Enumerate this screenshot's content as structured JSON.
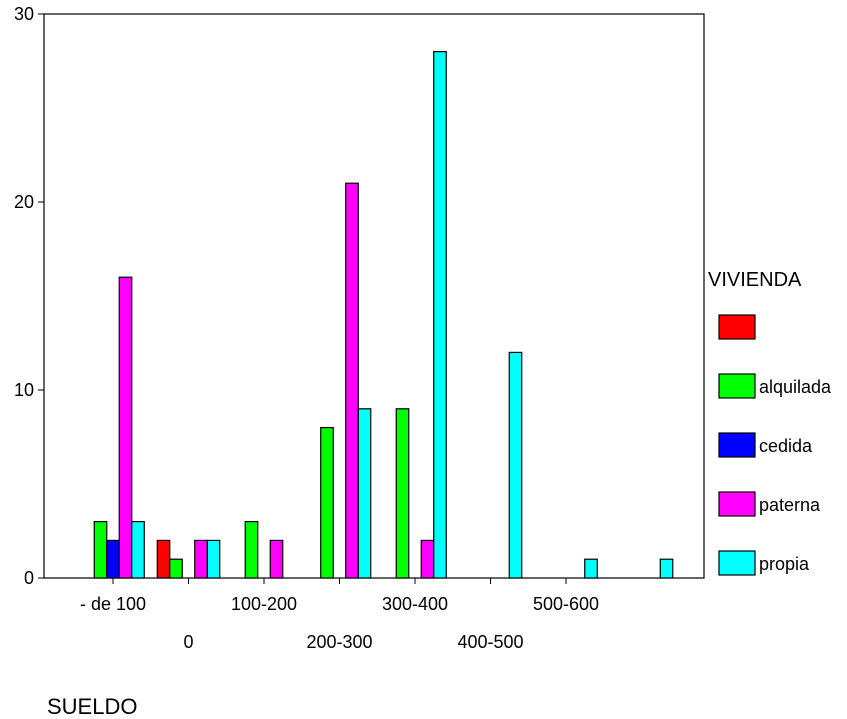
{
  "chart_data": {
    "type": "bar",
    "categories": [
      "- de 100",
      "0",
      "100-200",
      "200-300",
      "300-400",
      "400-500",
      "500-600"
    ],
    "series": [
      {
        "name": "",
        "color": "#ff0000",
        "values": [
          0,
          2,
          0,
          0,
          0,
          0,
          0
        ]
      },
      {
        "name": "alquilada",
        "color": "#00ff00",
        "values": [
          3,
          1,
          3,
          8,
          9,
          0,
          0
        ]
      },
      {
        "name": "cedida",
        "color": "#0000ff",
        "values": [
          2,
          0,
          0,
          0,
          0,
          0,
          0
        ]
      },
      {
        "name": "paterna",
        "color": "#ff00ff",
        "values": [
          16,
          2,
          2,
          21,
          2,
          0,
          0
        ]
      },
      {
        "name": "propia",
        "color": "#00ffff",
        "values": [
          3,
          2,
          0,
          9,
          28,
          12,
          1
        ]
      }
    ],
    "extra_bar": {
      "series": "propia",
      "value": 1,
      "after_category": "500-600"
    },
    "ylim": [
      0,
      30
    ],
    "yticks": [
      0,
      10,
      20,
      30
    ],
    "xlabel": "SUELDO",
    "ylabel": "",
    "legend_title": "VIVIENDA",
    "legend_position": "right",
    "grid": false
  }
}
